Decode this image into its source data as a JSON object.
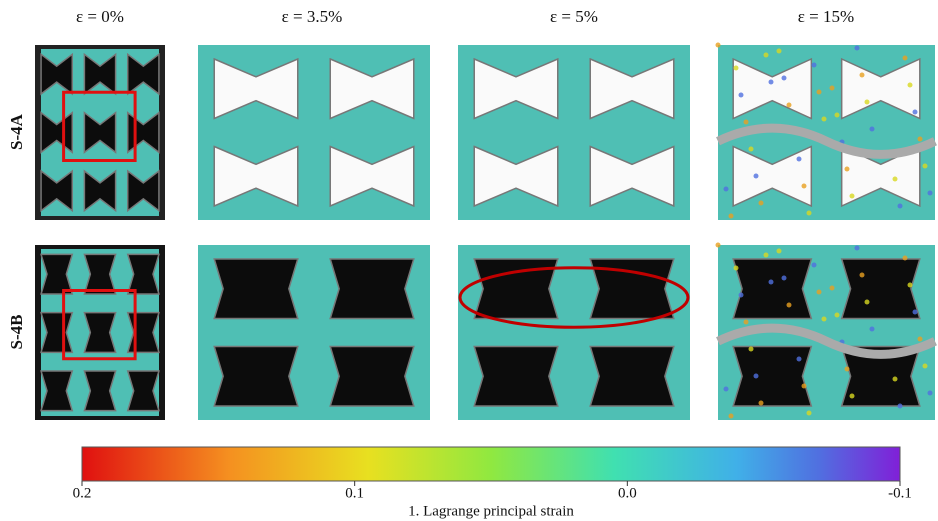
{
  "columns": [
    "ε = 0%",
    "ε = 3.5%",
    "ε = 5%",
    "ε = 15%"
  ],
  "rows": [
    "S-4A",
    "S-4B"
  ],
  "colorbar": {
    "lim": [
      0.2,
      -0.1
    ],
    "ticks": [
      0.2,
      0.1,
      {
        "value": 0,
        "label": "0.0"
      },
      -0.1
    ],
    "label": "1. Lagrange principal strain"
  }
}
